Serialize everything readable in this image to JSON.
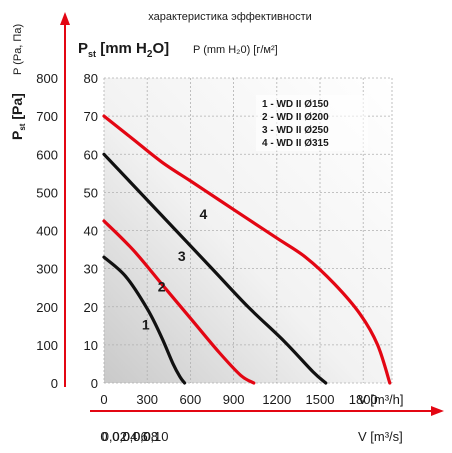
{
  "chart_data": {
    "type": "line",
    "title": "характеристика эффективности",
    "y_axis": {
      "label_pa": "P (Pa, Па)",
      "label_mm": "P (mm H₂0) [г/м²]",
      "label_pst_mm_prefix": "P",
      "label_pst_mm_sub": "st",
      "label_pst_mm_unit": " [mm H",
      "label_pst_mm_sub2": "2",
      "label_pst_mm_close": "O]",
      "label_pst_pa_prefix": "P",
      "label_pst_pa_sub": "st",
      "label_pst_pa_unit": " [Pa]",
      "pa_ticks": [
        "800",
        "700",
        "600",
        "500",
        "400",
        "300",
        "200",
        "100",
        "0"
      ],
      "mm_ticks": [
        "80",
        "70",
        "60",
        "50",
        "40",
        "30",
        "20",
        "10",
        "0"
      ],
      "ylim_mm": [
        0,
        80
      ]
    },
    "x_axis": {
      "label_m3h": "V [m³/h]",
      "label_m3s": "V [m³/s]",
      "m3h_ticks": [
        "0",
        "300",
        "600",
        "900",
        "1200",
        "1500",
        "1800"
      ],
      "m3s_ticks": [
        "0",
        "0,02",
        "0,04",
        "0,06",
        "0,08",
        "0,10"
      ],
      "xlim_m3h": [
        0,
        2000
      ]
    },
    "legend": {
      "position": "top-right",
      "entries": [
        "1 - WD II Ø150",
        "2 - WD II Ø200",
        "3 - WD II Ø250",
        "4 - WD II Ø315"
      ]
    },
    "series": [
      {
        "name": "1",
        "color": "#111111",
        "x": [
          0,
          150,
          300,
          400,
          480,
          530,
          560
        ],
        "y": [
          33,
          28,
          19.5,
          12,
          5,
          1.5,
          0
        ]
      },
      {
        "name": "2",
        "color": "#e30613",
        "x": [
          0,
          200,
          400,
          600,
          800,
          950,
          1040
        ],
        "y": [
          42.5,
          35,
          26,
          17,
          8,
          2,
          0
        ]
      },
      {
        "name": "3",
        "color": "#111111",
        "x": [
          0,
          250,
          500,
          750,
          1000,
          1250,
          1450,
          1540
        ],
        "y": [
          60,
          50,
          40,
          30,
          20,
          11,
          3,
          0
        ]
      },
      {
        "name": "4",
        "color": "#e30613",
        "x": [
          0,
          200,
          400,
          600,
          800,
          1000,
          1200,
          1400,
          1600,
          1780,
          1900,
          1985
        ],
        "y": [
          70,
          64,
          58,
          53,
          48,
          43,
          38,
          33,
          26,
          18,
          10,
          0
        ]
      }
    ],
    "curve_labels": [
      {
        "text": "1",
        "x": 290,
        "y": 14
      },
      {
        "text": "2",
        "x": 400,
        "y": 24
      },
      {
        "text": "3",
        "x": 540,
        "y": 32
      },
      {
        "text": "4",
        "x": 690,
        "y": 43
      }
    ],
    "grid": true,
    "axis_arrow_color": "#e30613"
  }
}
